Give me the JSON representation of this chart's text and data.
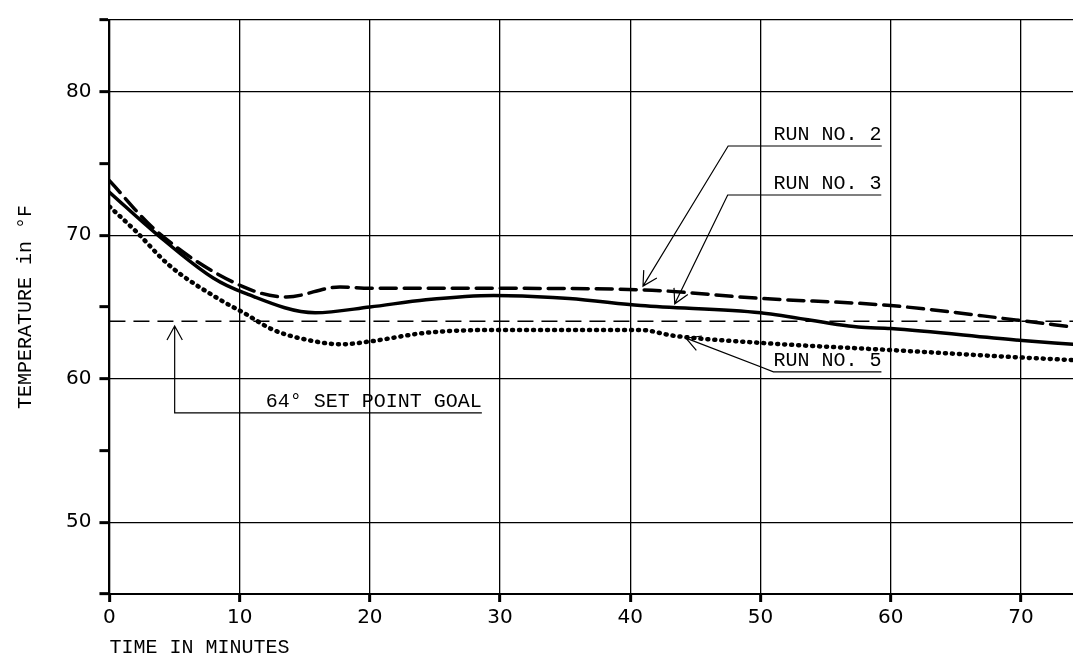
{
  "chart_data": {
    "type": "line",
    "xlabel": "TIME IN MINUTES",
    "ylabel": "TEMPERATURE in °F",
    "xlim": [
      0,
      74
    ],
    "xticks": [
      0,
      10,
      20,
      30,
      40,
      50,
      60,
      70
    ],
    "ylim": [
      45,
      85
    ],
    "yticks": [
      {
        "value": 45,
        "label": null
      },
      50,
      {
        "value": 55,
        "label": null
      },
      60,
      {
        "value": 65,
        "label": null
      },
      70,
      {
        "value": 75,
        "label": null
      },
      80,
      {
        "value": 85,
        "label": null
      }
    ],
    "grid": true,
    "legend": false,
    "marker": "none",
    "ref_lines": [
      {
        "axis": "y",
        "value": 64,
        "label": "64° SET POINT GOAL",
        "line_style": "dashed",
        "color": "#000000"
      }
    ],
    "series": [
      {
        "name": "RUN NO. 2",
        "color": "#000000",
        "line_style": "dashed",
        "x": [
          0,
          3.6,
          10.3,
          13.6,
          17.7,
          20,
          30,
          40.8,
          50,
          60,
          69.6,
          74
        ],
        "values": [
          73.8,
          70.3,
          66.4,
          65.7,
          66.4,
          66.3,
          66.3,
          66.2,
          65.6,
          65.1,
          64.1,
          63.6
        ]
      },
      {
        "name": "RUN NO. 3",
        "color": "#000000",
        "line_style": "solid",
        "x": [
          0,
          3.6,
          8,
          10.3,
          15.8,
          20,
          24.3,
          29.5,
          35.3,
          40.8,
          50,
          57.5,
          60,
          69.6,
          74
        ],
        "values": [
          73.0,
          70.1,
          67.0,
          66.0,
          64.6,
          65.0,
          65.5,
          65.8,
          65.6,
          65.1,
          64.6,
          63.6,
          63.5,
          62.7,
          62.4
        ]
      },
      {
        "name": "RUN NO. 5",
        "color": "#000000",
        "line_style": "dotted",
        "x": [
          0,
          2,
          4.6,
          8.5,
          10.3,
          12.6,
          15.8,
          17.8,
          20,
          24.3,
          29.5,
          40.8,
          43.3,
          50,
          60,
          69.6,
          74
        ],
        "values": [
          72.0,
          70.3,
          67.9,
          65.5,
          64.6,
          63.4,
          62.6,
          62.4,
          62.6,
          63.2,
          63.4,
          63.4,
          63.0,
          62.5,
          62.0,
          61.5,
          61.3
        ]
      }
    ]
  }
}
